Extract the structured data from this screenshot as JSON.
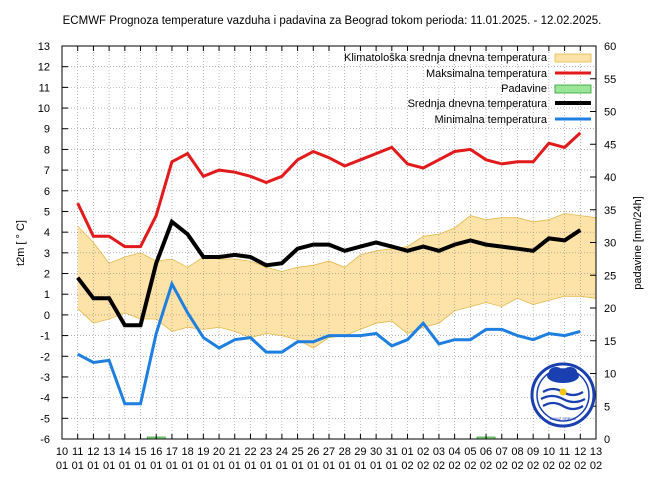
{
  "chart_data": {
    "type": "line",
    "title": "ECMWF Prognoza temperature vazduha i padavina za Beograd tokom perioda: 11.01.2025. - 12.02.2025.",
    "ylabel": "t2m [ ° C]",
    "y2label": "padavine [mm/24h]",
    "ylim": [
      -6,
      13
    ],
    "y2lim": [
      0,
      60
    ],
    "x_ticks_day": [
      "10",
      "11",
      "12",
      "13",
      "14",
      "15",
      "16",
      "17",
      "18",
      "19",
      "20",
      "21",
      "22",
      "23",
      "24",
      "25",
      "26",
      "27",
      "28",
      "29",
      "30",
      "31",
      "01",
      "02",
      "03",
      "04",
      "05",
      "06",
      "07",
      "08",
      "09",
      "10",
      "11",
      "12",
      "13"
    ],
    "x_ticks_month": [
      "01",
      "01",
      "01",
      "01",
      "01",
      "01",
      "01",
      "01",
      "01",
      "01",
      "01",
      "01",
      "01",
      "01",
      "01",
      "01",
      "01",
      "01",
      "01",
      "01",
      "01",
      "01",
      "02",
      "02",
      "02",
      "02",
      "02",
      "02",
      "02",
      "02",
      "02",
      "02",
      "02",
      "02",
      "02"
    ],
    "y_ticks": [
      "-6",
      "-5",
      "-4",
      "-3",
      "-2",
      "-1",
      "0",
      "1",
      "2",
      "3",
      "4",
      "5",
      "6",
      "7",
      "8",
      "9",
      "10",
      "11",
      "12",
      "13"
    ],
    "y2_ticks": [
      "0",
      "5",
      "10",
      "15",
      "20",
      "25",
      "30",
      "35",
      "40",
      "45",
      "50",
      "55",
      "60"
    ],
    "grid": true,
    "legend_position": "top-right",
    "band": {
      "name": "Klimatološka srednja dnevna temperatura",
      "color": "#fde3a7",
      "edge_color": "#e6b84a",
      "lower": [
        0.3,
        -0.4,
        -0.2,
        0.1,
        -0.2,
        -0.2,
        -0.8,
        -0.6,
        -0.7,
        -0.6,
        -0.8,
        -1.1,
        -0.9,
        -1.0,
        -1.2,
        -1.6,
        -1.1,
        -1.0,
        -0.7,
        -0.4,
        -0.3,
        -0.9,
        -0.6,
        -0.4,
        0.2,
        0.4,
        0.6,
        0.4,
        0.8,
        0.5,
        0.7,
        0.9,
        0.9,
        0.8
      ],
      "upper": [
        4.3,
        3.5,
        2.5,
        2.8,
        3.0,
        2.6,
        2.7,
        2.3,
        2.8,
        2.7,
        2.7,
        2.6,
        2.3,
        2.1,
        2.3,
        2.4,
        2.6,
        2.3,
        2.9,
        3.1,
        3.2,
        3.3,
        3.8,
        3.9,
        4.2,
        4.8,
        4.6,
        4.7,
        4.7,
        4.5,
        4.6,
        4.9,
        4.8,
        4.7
      ]
    },
    "series": [
      {
        "name": "Maksimalna temperatura",
        "color": "#e31a1c",
        "width": 3,
        "values": [
          5.4,
          3.8,
          3.8,
          3.3,
          3.3,
          4.8,
          7.4,
          7.8,
          6.7,
          7.0,
          6.9,
          6.7,
          6.4,
          6.7,
          7.5,
          7.9,
          7.6,
          7.2,
          7.5,
          7.8,
          8.1,
          7.3,
          7.1,
          7.5,
          7.9,
          8.0,
          7.5,
          7.3,
          7.4,
          7.4,
          8.3,
          8.1,
          8.8
        ]
      },
      {
        "name": "Srednja dnevna temperatura",
        "color": "#000000",
        "width": 4,
        "values": [
          1.8,
          0.8,
          0.8,
          -0.5,
          -0.5,
          2.5,
          4.5,
          3.9,
          2.8,
          2.8,
          2.9,
          2.8,
          2.4,
          2.5,
          3.2,
          3.4,
          3.4,
          3.1,
          3.3,
          3.5,
          3.3,
          3.1,
          3.3,
          3.1,
          3.4,
          3.6,
          3.4,
          3.3,
          3.2,
          3.1,
          3.7,
          3.6,
          4.1
        ]
      },
      {
        "name": "Minimalna temperatura",
        "color": "#1e7fe0",
        "width": 3,
        "values": [
          -1.9,
          -2.3,
          -2.2,
          -4.3,
          -4.3,
          -0.9,
          1.5,
          0.1,
          -1.1,
          -1.6,
          -1.2,
          -1.1,
          -1.8,
          -1.8,
          -1.3,
          -1.3,
          -1.0,
          -1.0,
          -1.0,
          -0.9,
          -1.5,
          -1.2,
          -0.4,
          -1.4,
          -1.2,
          -1.2,
          -0.7,
          -0.7,
          -1.0,
          -1.2,
          -0.9,
          -1.0,
          -0.8
        ]
      },
      {
        "name": "Padavine",
        "color": "#9be59b",
        "edge_color": "#2ca02c",
        "values": [
          0,
          0,
          0,
          0,
          0,
          0.3,
          0,
          0,
          0,
          0,
          0,
          0,
          0,
          0,
          0,
          0,
          0,
          0,
          0,
          0,
          0,
          0,
          0,
          0,
          0,
          0,
          0.3,
          0,
          0,
          0,
          0,
          0,
          0
        ]
      }
    ]
  },
  "logo": {
    "text": "RHMZ SRBIJE"
  }
}
